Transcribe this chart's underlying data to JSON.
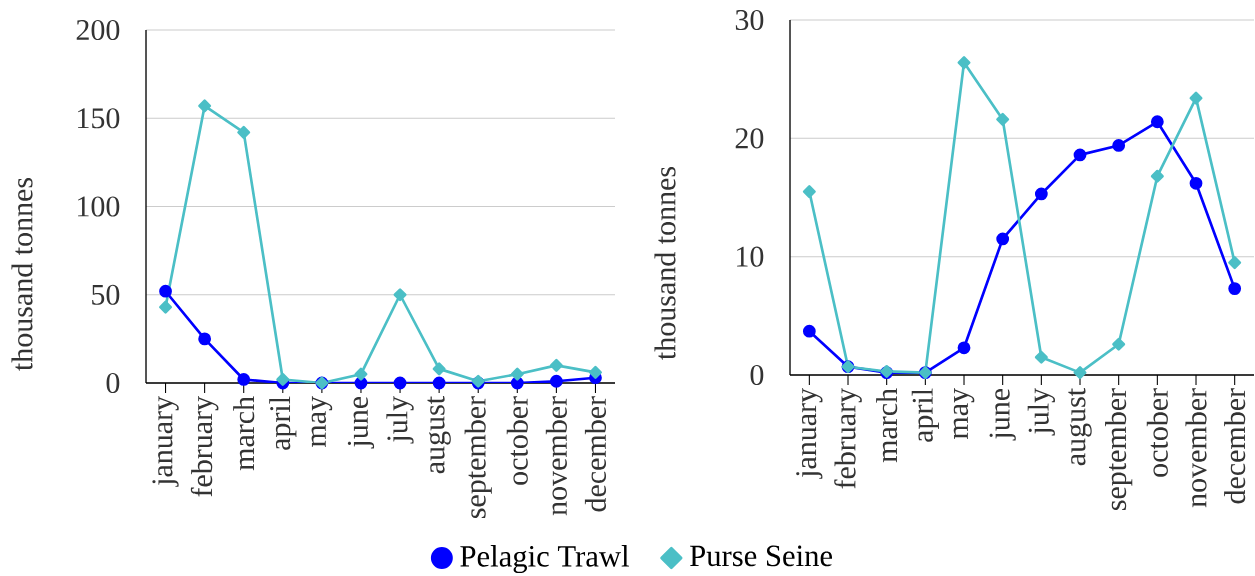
{
  "chart_data": [
    {
      "type": "line",
      "categories": [
        "january",
        "february",
        "march",
        "april",
        "may",
        "june",
        "july",
        "august",
        "september",
        "october",
        "november",
        "december"
      ],
      "ylabel": "thousand tonnes",
      "ylim": [
        0,
        200
      ],
      "yticks": [
        0,
        50,
        100,
        150,
        200
      ],
      "grid": "y",
      "legend": "bottom",
      "series": [
        {
          "name": "Pelagic Trawl",
          "color": "#0000ff",
          "marker": "circle",
          "values": [
            52,
            25,
            2,
            0,
            0,
            0,
            0,
            0,
            0,
            0,
            1,
            3
          ]
        },
        {
          "name": "Purse Seine",
          "color": "#4bbfc6",
          "marker": "diamond",
          "values": [
            43,
            157,
            142,
            2,
            0,
            5,
            50,
            8,
            1,
            5,
            10,
            6
          ]
        }
      ]
    },
    {
      "type": "line",
      "categories": [
        "january",
        "february",
        "march",
        "april",
        "may",
        "june",
        "july",
        "august",
        "september",
        "october",
        "november",
        "december"
      ],
      "ylabel": "thousand tonnes",
      "ylim": [
        0,
        30
      ],
      "yticks": [
        0,
        10,
        20,
        30
      ],
      "grid": "y",
      "series": [
        {
          "color": "#0000ff",
          "marker": "circle",
          "values": [
            3.7,
            0.7,
            0.2,
            0.2,
            2.3,
            11.5,
            15.3,
            18.6,
            19.4,
            21.4,
            16.2,
            7.3
          ]
        },
        {
          "color": "#4bbfc6",
          "marker": "diamond",
          "values": [
            15.5,
            0.7,
            0.3,
            0.2,
            26.4,
            21.6,
            1.5,
            0.2,
            2.6,
            16.8,
            23.4,
            9.5
          ]
        }
      ]
    }
  ]
}
